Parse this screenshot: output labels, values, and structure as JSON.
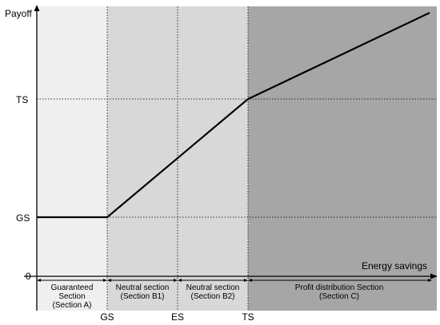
{
  "y_axis": {
    "label": "Payoff",
    "ticks": [
      "TS",
      "GS",
      "0"
    ]
  },
  "x_axis": {
    "label": "Energy savings",
    "ticks": [
      "GS",
      "ES",
      "TS"
    ]
  },
  "sections": [
    {
      "lines": [
        "Guaranteed",
        "Section",
        "(Section A)"
      ],
      "fill": "#efefef"
    },
    {
      "lines": [
        "Neutral section",
        "(Section B1)"
      ],
      "fill": "#d8d8d8"
    },
    {
      "lines": [
        "Neutral section",
        "(Section B2)"
      ],
      "fill": "#d8d8d8"
    },
    {
      "lines": [
        "Profit distribution Section",
        "(Section C)"
      ],
      "fill": "#a6a6a6"
    }
  ]
}
